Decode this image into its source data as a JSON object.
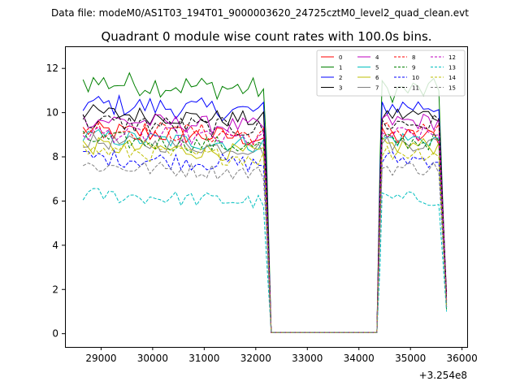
{
  "chart_data": {
    "type": "line",
    "suptitle": "Data file: modeM0/AS1T03_194T01_9000003620_24725cztM0_level2_quad_clean.evt",
    "title": "Quadrant 0 module wise count rates with 100.0s bins.",
    "xlabel": "",
    "ylabel": "",
    "offset_text": "+3.254e8",
    "xlim": [
      28300,
      36100
    ],
    "ylim": [
      -0.6,
      13.0
    ],
    "xticks": [
      29000,
      30000,
      31000,
      32000,
      33000,
      34000,
      35000,
      36000
    ],
    "xtick_labels": [
      "29000",
      "30000",
      "31000",
      "32000",
      "33000",
      "34000",
      "35000",
      "36000"
    ],
    "yticks": [
      0,
      2,
      4,
      6,
      8,
      10,
      12
    ],
    "ytick_labels": [
      "0",
      "2",
      "4",
      "6",
      "8",
      "10",
      "12"
    ],
    "grid": false,
    "legend_position": "top-right",
    "gap": {
      "start": 32300,
      "end": 34350,
      "value": 0.05
    },
    "segment1_x": [
      28650,
      32150
    ],
    "segment2_x": [
      34450,
      35600
    ],
    "end_x": 35700,
    "series": [
      {
        "name": "0",
        "color": "#ff0000",
        "dash": "solid",
        "level": 9.2,
        "amp": 0.45,
        "seg2": 8.9,
        "end": 1.4
      },
      {
        "name": "1",
        "color": "#008000",
        "dash": "solid",
        "level": 11.4,
        "amp": 0.55,
        "seg2": 11.0,
        "end": 1.1
      },
      {
        "name": "2",
        "color": "#0000ff",
        "dash": "solid",
        "level": 10.4,
        "amp": 0.5,
        "seg2": 10.3,
        "end": 1.5
      },
      {
        "name": "3",
        "color": "#000000",
        "dash": "solid",
        "level": 10.0,
        "amp": 0.4,
        "seg2": 9.9,
        "end": 1.8
      },
      {
        "name": "4",
        "color": "#bf00bf",
        "dash": "solid",
        "level": 9.7,
        "amp": 0.4,
        "seg2": 9.6,
        "end": 1.6
      },
      {
        "name": "5",
        "color": "#00bfbf",
        "dash": "solid",
        "level": 8.9,
        "amp": 0.4,
        "seg2": 8.8,
        "end": 1.3
      },
      {
        "name": "6",
        "color": "#bfbf00",
        "dash": "solid",
        "level": 8.5,
        "amp": 0.4,
        "seg2": 8.5,
        "end": 1.2
      },
      {
        "name": "7",
        "color": "#808080",
        "dash": "solid",
        "level": 8.7,
        "amp": 0.35,
        "seg2": 8.6,
        "end": 1.2
      },
      {
        "name": "8",
        "color": "#ff0000",
        "dash": "dashed",
        "level": 9.3,
        "amp": 0.45,
        "seg2": 9.2,
        "end": 1.5
      },
      {
        "name": "9",
        "color": "#008000",
        "dash": "dashed",
        "level": 8.8,
        "amp": 0.4,
        "seg2": 8.7,
        "end": 1.3
      },
      {
        "name": "10",
        "color": "#0000ff",
        "dash": "dashed",
        "level": 8.0,
        "amp": 0.4,
        "seg2": 7.9,
        "end": 1.2
      },
      {
        "name": "11",
        "color": "#000000",
        "dash": "dashed",
        "level": 9.6,
        "amp": 0.45,
        "seg2": 9.5,
        "end": 1.6
      },
      {
        "name": "12",
        "color": "#bf00bf",
        "dash": "dashed",
        "level": 9.1,
        "amp": 0.4,
        "seg2": 9.0,
        "end": 1.5
      },
      {
        "name": "13",
        "color": "#00bfbf",
        "dash": "dashed",
        "level": 6.3,
        "amp": 0.35,
        "seg2": 6.1,
        "end": 1.0
      },
      {
        "name": "14",
        "color": "#bfbf00",
        "dash": "dashed",
        "level": 8.3,
        "amp": 0.4,
        "seg2": 8.2,
        "end": 1.2
      },
      {
        "name": "15",
        "color": "#808080",
        "dash": "dashed",
        "level": 7.6,
        "amp": 0.35,
        "seg2": 7.5,
        "end": 1.2
      }
    ]
  }
}
